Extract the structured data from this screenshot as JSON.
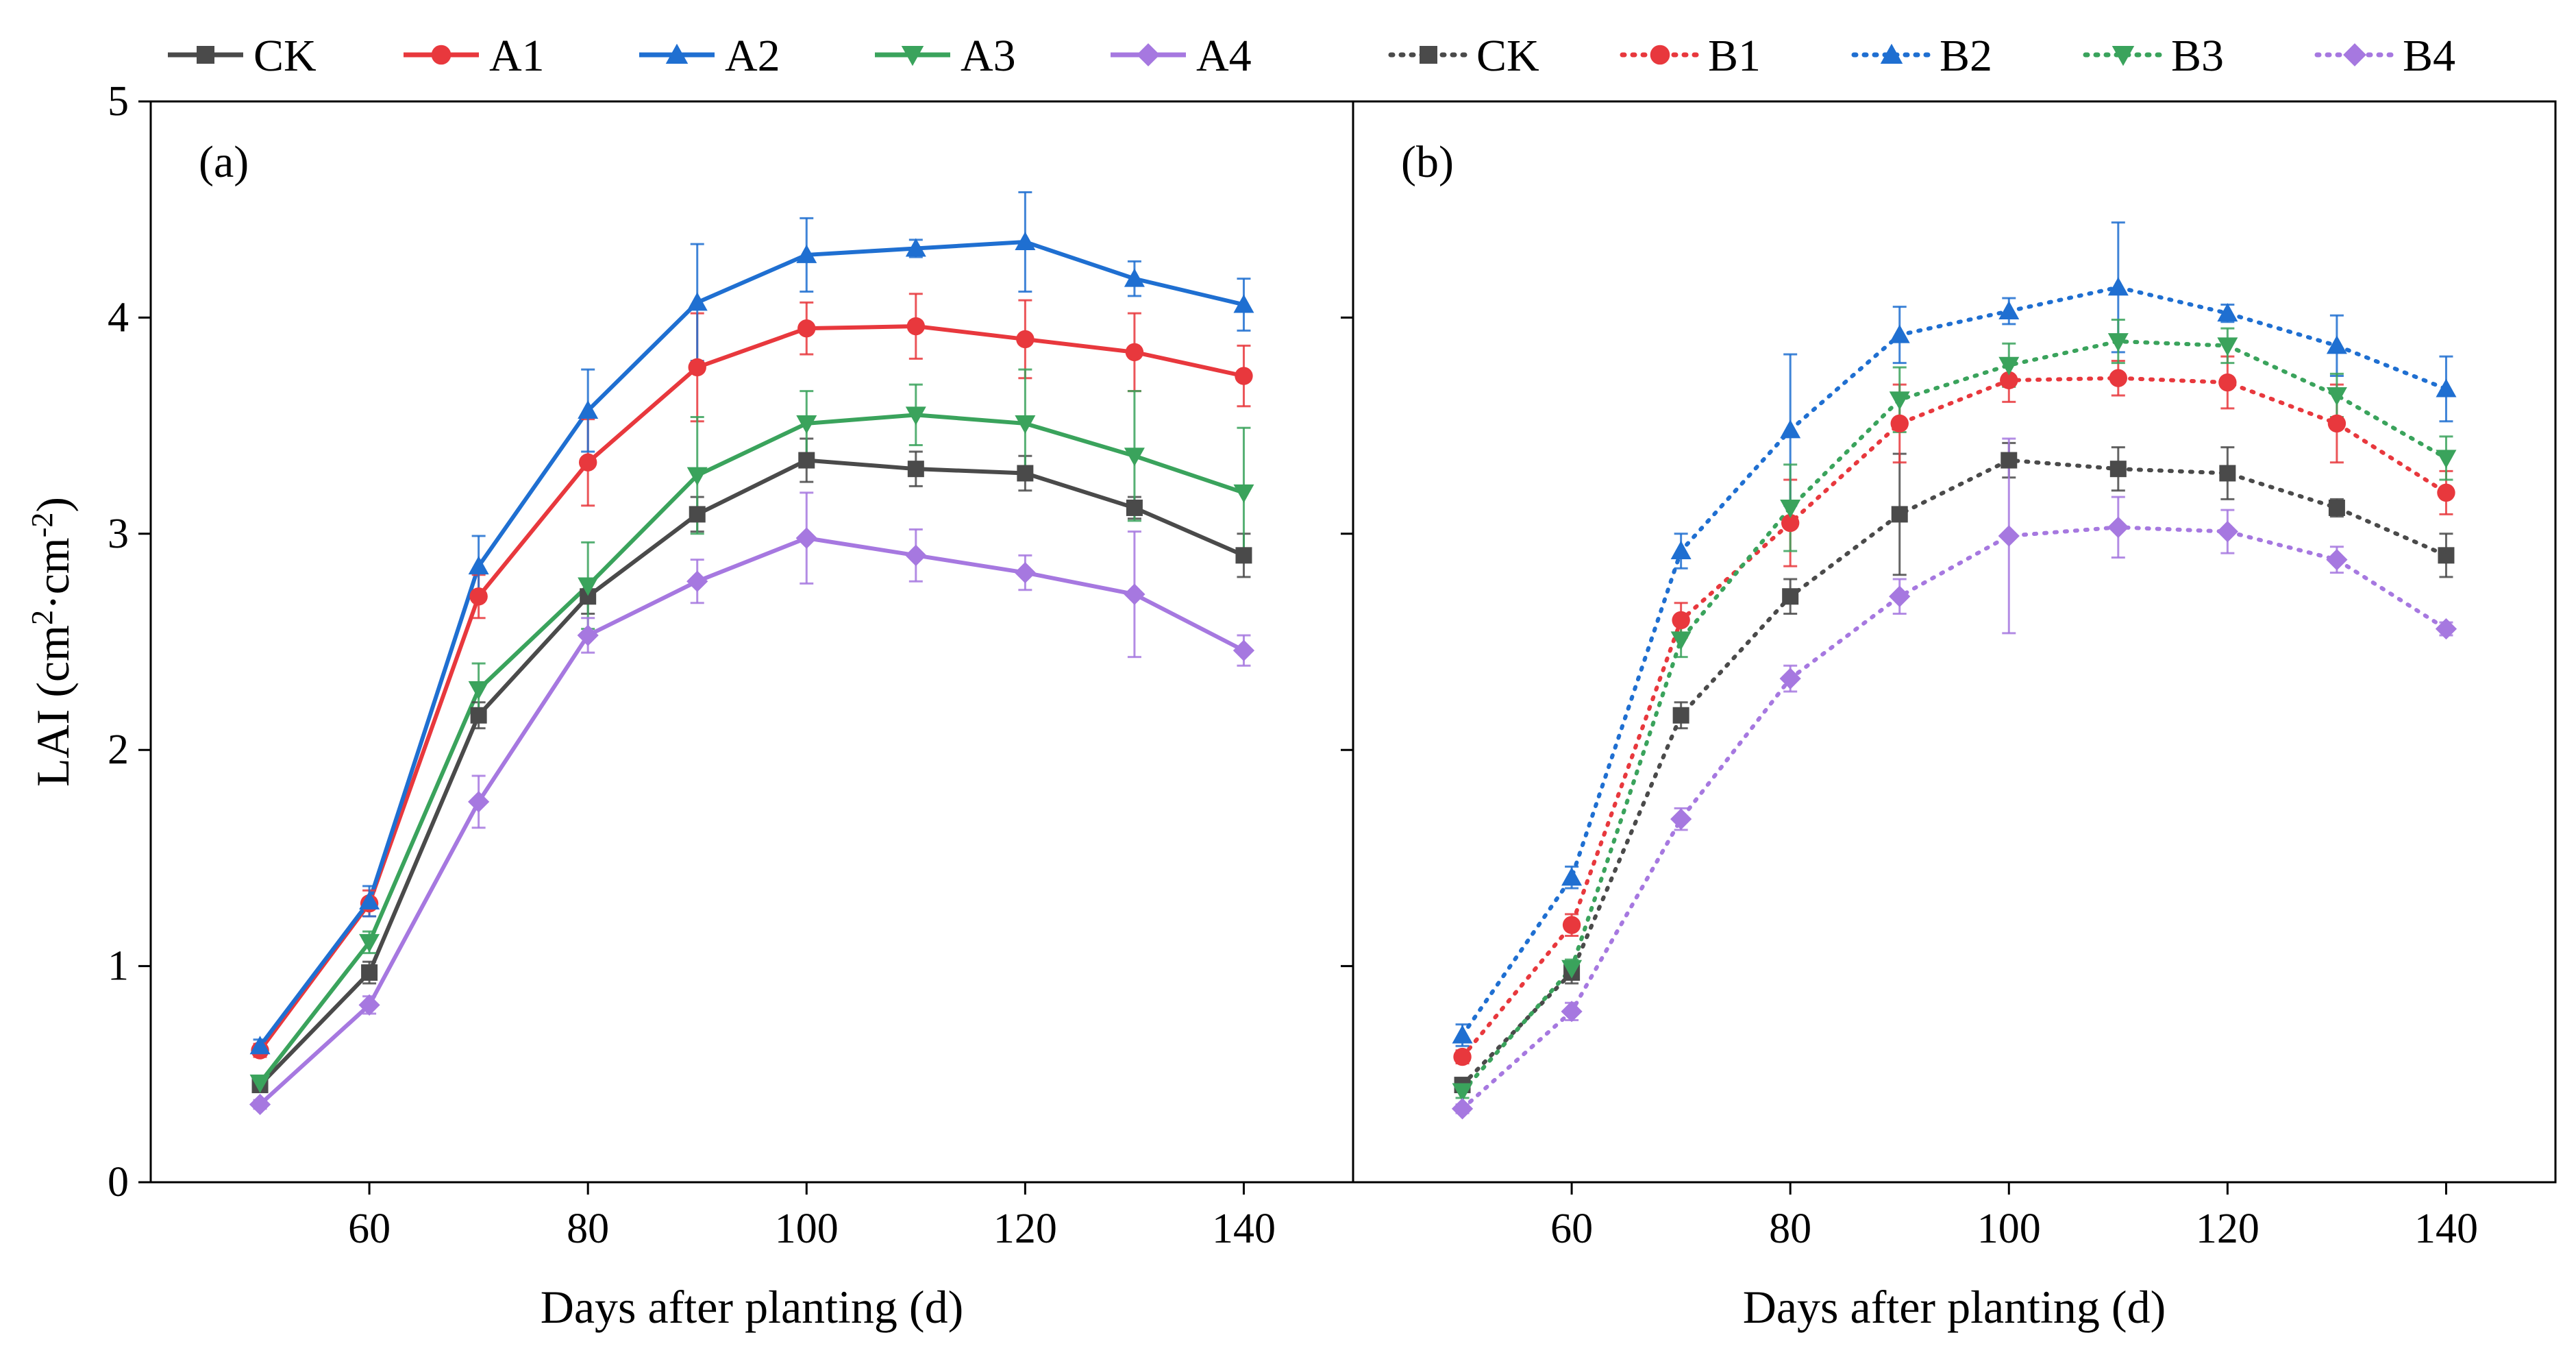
{
  "chart_data": [
    {
      "type": "line",
      "panel_label": "(a)",
      "xlabel": "Days after planting (d)",
      "ylabel": "LAI (cm²·cm⁻²)",
      "xlim": [
        40,
        150
      ],
      "ylim": [
        0,
        5
      ],
      "x_ticks": [
        60,
        80,
        100,
        120,
        140
      ],
      "y_ticks": [
        0,
        1,
        2,
        3,
        4,
        5
      ],
      "x": [
        50,
        60,
        70,
        80,
        90,
        100,
        110,
        120,
        130,
        140
      ],
      "line_style": "solid",
      "series": [
        {
          "name": "CK",
          "color": "#4a4a4a",
          "marker": "square",
          "values": [
            0.45,
            0.97,
            2.16,
            2.71,
            3.09,
            3.34,
            3.3,
            3.28,
            3.12,
            2.9
          ],
          "errors": [
            0.03,
            0.05,
            0.06,
            0.08,
            0.08,
            0.1,
            0.08,
            0.08,
            0.05,
            0.1
          ]
        },
        {
          "name": "A1",
          "color": "#e8383d",
          "marker": "circle",
          "values": [
            0.61,
            1.29,
            2.71,
            3.33,
            3.77,
            3.95,
            3.96,
            3.9,
            3.84,
            3.73
          ],
          "errors": [
            0.03,
            0.06,
            0.1,
            0.2,
            0.25,
            0.12,
            0.15,
            0.18,
            0.18,
            0.14
          ]
        },
        {
          "name": "A2",
          "color": "#1f6fd1",
          "marker": "triangle-up",
          "values": [
            0.63,
            1.3,
            2.85,
            3.57,
            4.07,
            4.29,
            4.32,
            4.35,
            4.18,
            4.06
          ],
          "errors": [
            0.03,
            0.07,
            0.14,
            0.19,
            0.27,
            0.17,
            0.04,
            0.23,
            0.08,
            0.12
          ]
        },
        {
          "name": "A3",
          "color": "#3aa35c",
          "marker": "triangle-down",
          "values": [
            0.46,
            1.11,
            2.28,
            2.76,
            3.27,
            3.51,
            3.55,
            3.51,
            3.36,
            3.19
          ],
          "errors": [
            0.03,
            0.05,
            0.12,
            0.2,
            0.27,
            0.15,
            0.14,
            0.25,
            0.3,
            0.3
          ]
        },
        {
          "name": "A4",
          "color": "#a678e0",
          "marker": "diamond",
          "values": [
            0.36,
            0.82,
            1.76,
            2.53,
            2.78,
            2.98,
            2.9,
            2.82,
            2.72,
            2.46
          ],
          "errors": [
            0.02,
            0.04,
            0.12,
            0.08,
            0.1,
            0.21,
            0.12,
            0.08,
            0.29,
            0.07
          ]
        }
      ]
    },
    {
      "type": "line",
      "panel_label": "(b)",
      "xlabel": "Days after planting (d)",
      "ylabel": "",
      "xlim": [
        40,
        150
      ],
      "ylim": [
        0,
        5
      ],
      "x_ticks": [
        60,
        80,
        100,
        120,
        140
      ],
      "y_ticks": [
        0,
        1,
        2,
        3,
        4,
        5
      ],
      "x": [
        50,
        60,
        70,
        80,
        90,
        100,
        110,
        120,
        130,
        140
      ],
      "line_style": "dotted",
      "series": [
        {
          "name": "CK",
          "color": "#4a4a4a",
          "marker": "square",
          "values": [
            0.45,
            0.97,
            2.16,
            2.71,
            3.09,
            3.34,
            3.3,
            3.28,
            3.12,
            2.9
          ],
          "errors": [
            0.03,
            0.05,
            0.06,
            0.08,
            0.28,
            0.08,
            0.1,
            0.12,
            0.04,
            0.1
          ]
        },
        {
          "name": "B1",
          "color": "#e8383d",
          "marker": "circle",
          "values": [
            0.58,
            1.19,
            2.6,
            3.05,
            3.51,
            3.71,
            3.72,
            3.7,
            3.51,
            3.19
          ],
          "errors": [
            0.03,
            0.05,
            0.08,
            0.2,
            0.18,
            0.1,
            0.08,
            0.12,
            0.18,
            0.1
          ]
        },
        {
          "name": "B2",
          "color": "#1f6fd1",
          "marker": "triangle-up",
          "values": [
            0.68,
            1.41,
            2.92,
            3.48,
            3.92,
            4.03,
            4.14,
            4.02,
            3.87,
            3.67
          ],
          "errors": [
            0.05,
            0.05,
            0.08,
            0.35,
            0.13,
            0.06,
            0.3,
            0.04,
            0.14,
            0.15
          ]
        },
        {
          "name": "B3",
          "color": "#3aa35c",
          "marker": "triangle-down",
          "values": [
            0.42,
            0.99,
            2.51,
            3.12,
            3.62,
            3.78,
            3.89,
            3.87,
            3.64,
            3.35
          ],
          "errors": [
            0.03,
            0.04,
            0.08,
            0.2,
            0.15,
            0.1,
            0.1,
            0.08,
            0.1,
            0.1
          ]
        },
        {
          "name": "B4",
          "color": "#a678e0",
          "marker": "diamond",
          "values": [
            0.34,
            0.79,
            1.68,
            2.33,
            2.71,
            2.99,
            3.03,
            3.01,
            2.88,
            2.56
          ],
          "errors": [
            0.02,
            0.04,
            0.05,
            0.06,
            0.08,
            0.45,
            0.14,
            0.1,
            0.06,
            0.03
          ]
        }
      ]
    }
  ]
}
